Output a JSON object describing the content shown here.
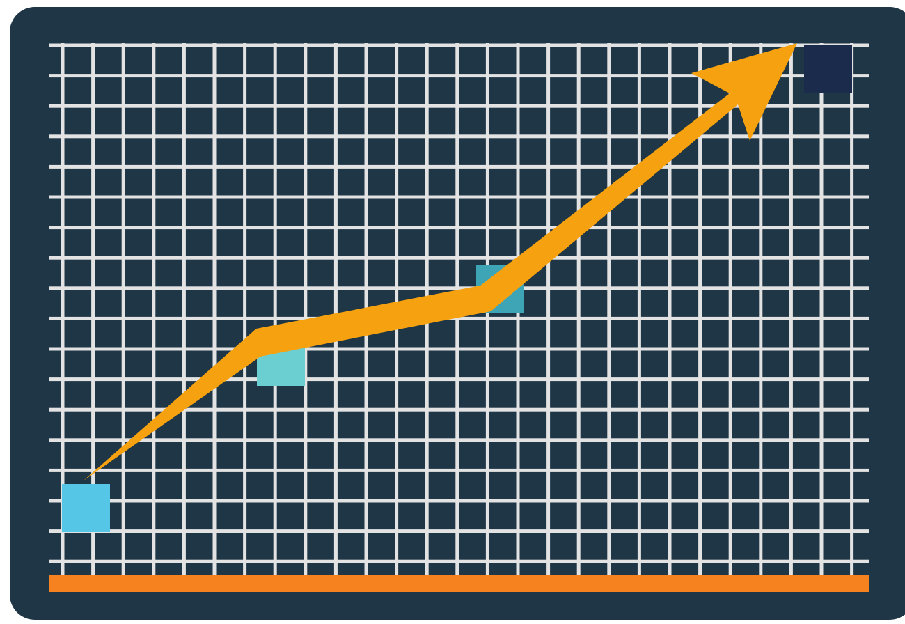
{
  "illustration": {
    "subject": "rising-growth-chart-icon",
    "colors": {
      "panel": "#1e3646",
      "grid": "#e3e3e3",
      "baseline": "#f5821f",
      "arrow": "#f6a10f"
    },
    "markers": [
      {
        "name": "marker-1",
        "level": 0.1,
        "color": "#55c6e6"
      },
      {
        "name": "marker-2",
        "level": 0.4,
        "color": "#6bcfd1"
      },
      {
        "name": "marker-3",
        "level": 0.55,
        "color": "#3da5b5"
      },
      {
        "name": "marker-4",
        "level": 1.0,
        "color": "#1b2b4b"
      }
    ]
  }
}
